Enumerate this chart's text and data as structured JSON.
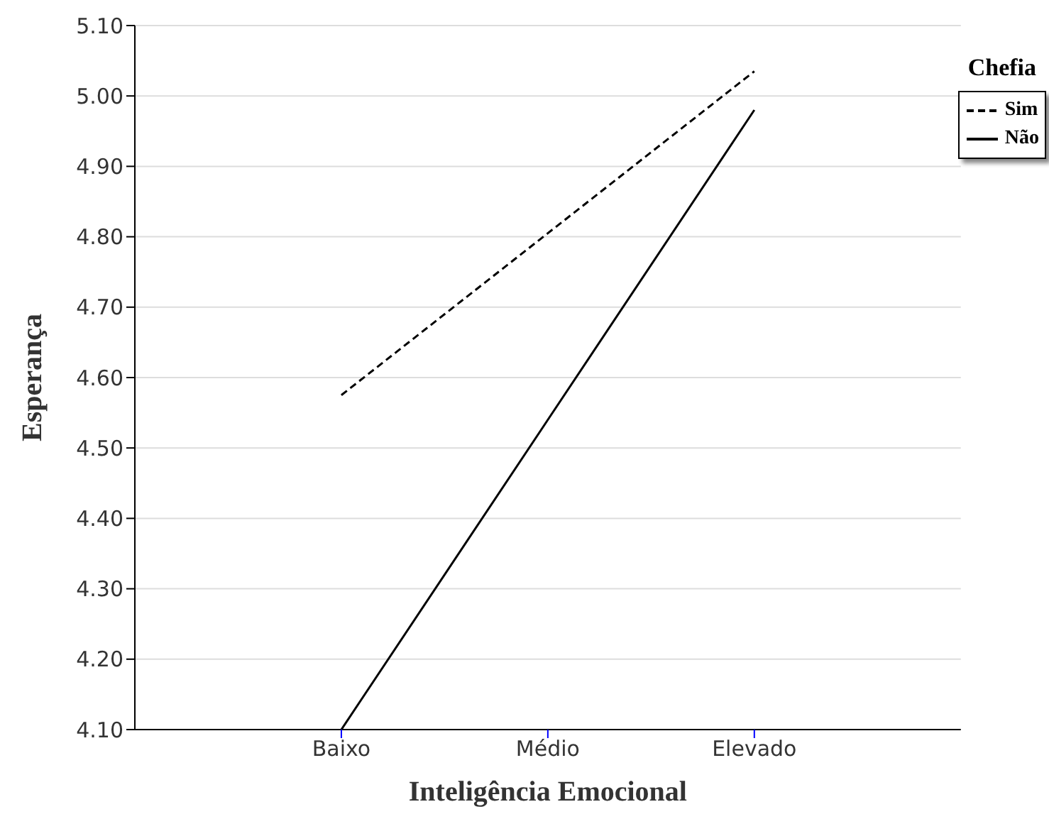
{
  "chart_data": {
    "type": "line",
    "xlabel": "Inteligência Emocional",
    "ylabel": "Esperança",
    "legend_title": "Chefia",
    "categories": [
      null,
      "Baixo",
      "Médio",
      "Elevado",
      null
    ],
    "series": [
      {
        "name": "Sim",
        "color": "#000000",
        "line_style": "dashed",
        "values": [
          null,
          4.575,
          4.805,
          5.035,
          null
        ]
      },
      {
        "name": "Não",
        "color": "#000000",
        "line_style": "solid",
        "values": [
          null,
          4.1,
          4.54,
          4.98,
          null
        ]
      }
    ],
    "ylim": [
      4.1,
      5.1
    ],
    "yticks": [
      {
        "value": 4.1,
        "label": "4.10"
      },
      {
        "value": 4.2,
        "label": "4.20"
      },
      {
        "value": 4.3,
        "label": "4.30"
      },
      {
        "value": 4.4,
        "label": "4.40"
      },
      {
        "value": 4.5,
        "label": "4.50"
      },
      {
        "value": 4.6,
        "label": "4.60"
      },
      {
        "value": 4.7,
        "label": "4.70"
      },
      {
        "value": 4.8,
        "label": "4.80"
      },
      {
        "value": 4.9,
        "label": "4.90"
      },
      {
        "value": 5.0,
        "label": "5.00"
      },
      {
        "value": 5.1,
        "label": "5.10"
      }
    ],
    "grid": "y",
    "legend": "top right",
    "marker": "none"
  }
}
